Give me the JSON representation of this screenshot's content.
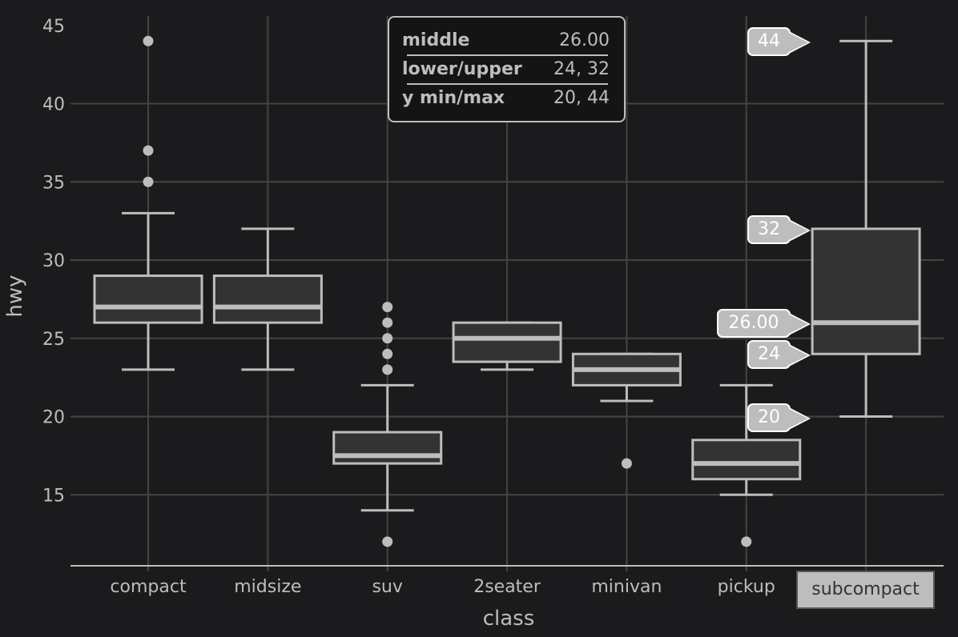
{
  "chart_data": {
    "type": "boxplot",
    "title": "",
    "xlabel": "class",
    "ylabel": "hwy",
    "ylim": [
      10.8,
      45.6
    ],
    "yticks": [
      15,
      20,
      25,
      30,
      35,
      40,
      45
    ],
    "grid": true,
    "categories": [
      "compact",
      "midsize",
      "suv",
      "2seater",
      "minivan",
      "pickup",
      "subcompact"
    ],
    "boxes": [
      {
        "category": "compact",
        "lower_whisker": 23,
        "q1": 26,
        "median": 27,
        "q3": 29,
        "upper_whisker": 33,
        "outliers": [
          35,
          37,
          44
        ]
      },
      {
        "category": "midsize",
        "lower_whisker": 23,
        "q1": 26,
        "median": 27,
        "q3": 29,
        "upper_whisker": 32,
        "outliers": []
      },
      {
        "category": "suv",
        "lower_whisker": 14,
        "q1": 17,
        "median": 17.5,
        "q3": 19,
        "upper_whisker": 22,
        "outliers": [
          12,
          23,
          24,
          25,
          26,
          27
        ]
      },
      {
        "category": "2seater",
        "lower_whisker": 23,
        "q1": 23.5,
        "median": 25,
        "q3": 26,
        "upper_whisker": 26,
        "outliers": []
      },
      {
        "category": "minivan",
        "lower_whisker": 21,
        "q1": 22,
        "median": 23,
        "q3": 24,
        "upper_whisker": 24,
        "outliers": [
          17
        ]
      },
      {
        "category": "pickup",
        "lower_whisker": 15,
        "q1": 16,
        "median": 17,
        "q3": 18.5,
        "upper_whisker": 22,
        "outliers": [
          12
        ]
      },
      {
        "category": "subcompact",
        "lower_whisker": 20,
        "q1": 24,
        "median": 26,
        "q3": 32,
        "upper_whisker": 44,
        "outliers": []
      }
    ],
    "highlighted_category": "subcompact"
  },
  "tooltip": {
    "rows": [
      {
        "key": "middle",
        "value": "26.00"
      },
      {
        "key": "lower/upper",
        "value": "24, 32"
      },
      {
        "key": "y min/max",
        "value": "20, 44"
      }
    ]
  },
  "callouts": [
    {
      "label": "44",
      "y_value": 44
    },
    {
      "label": "32",
      "y_value": 32
    },
    {
      "label": "26.00",
      "y_value": 26
    },
    {
      "label": "24",
      "y_value": 24
    },
    {
      "label": "20",
      "y_value": 20
    }
  ],
  "x_axis_highlight": {
    "label": "subcompact"
  },
  "colors": {
    "background": "#1b1b1d",
    "grid": "#444444",
    "box_stroke": "#bdbdbd",
    "box_fill": "#333333",
    "text": "#bdbdbd"
  }
}
